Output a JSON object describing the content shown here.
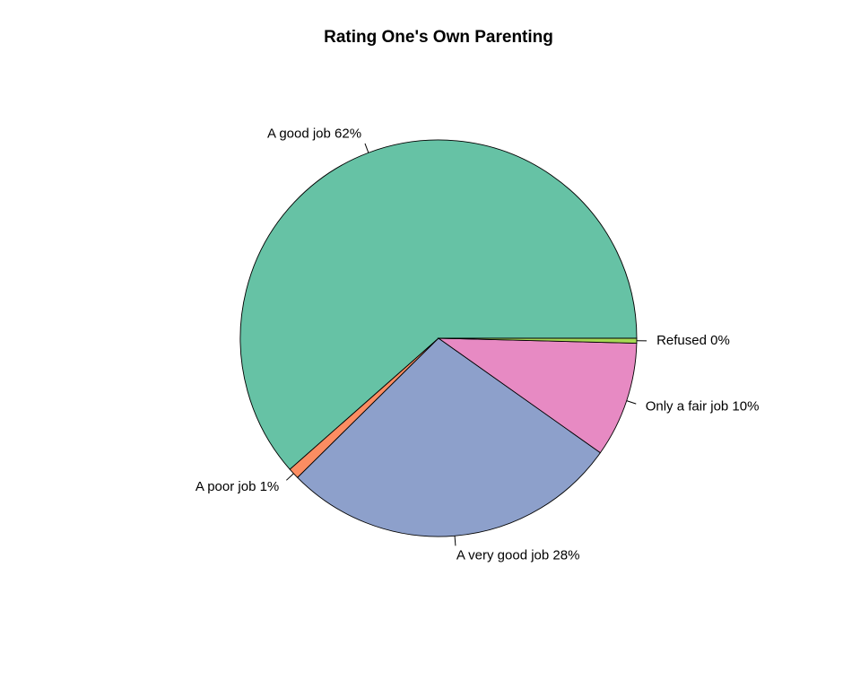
{
  "chart_data": {
    "type": "pie",
    "title": "Rating One's Own Parenting",
    "slices": [
      {
        "label": "A good job 62%",
        "value": 61.5,
        "color": "#66c2a5"
      },
      {
        "label": "A poor job 1%",
        "value": 0.9,
        "color": "#fc8d62"
      },
      {
        "label": "A very good job 28%",
        "value": 27.8,
        "color": "#8da0cb"
      },
      {
        "label": "Only a fair job 10%",
        "value": 9.4,
        "color": "#e78ac3"
      },
      {
        "label": "Refused 0%",
        "value": 0.4,
        "color": "#a6d854"
      }
    ],
    "start_angle_deg": 0,
    "direction": "counterclockwise",
    "legend": "none"
  }
}
